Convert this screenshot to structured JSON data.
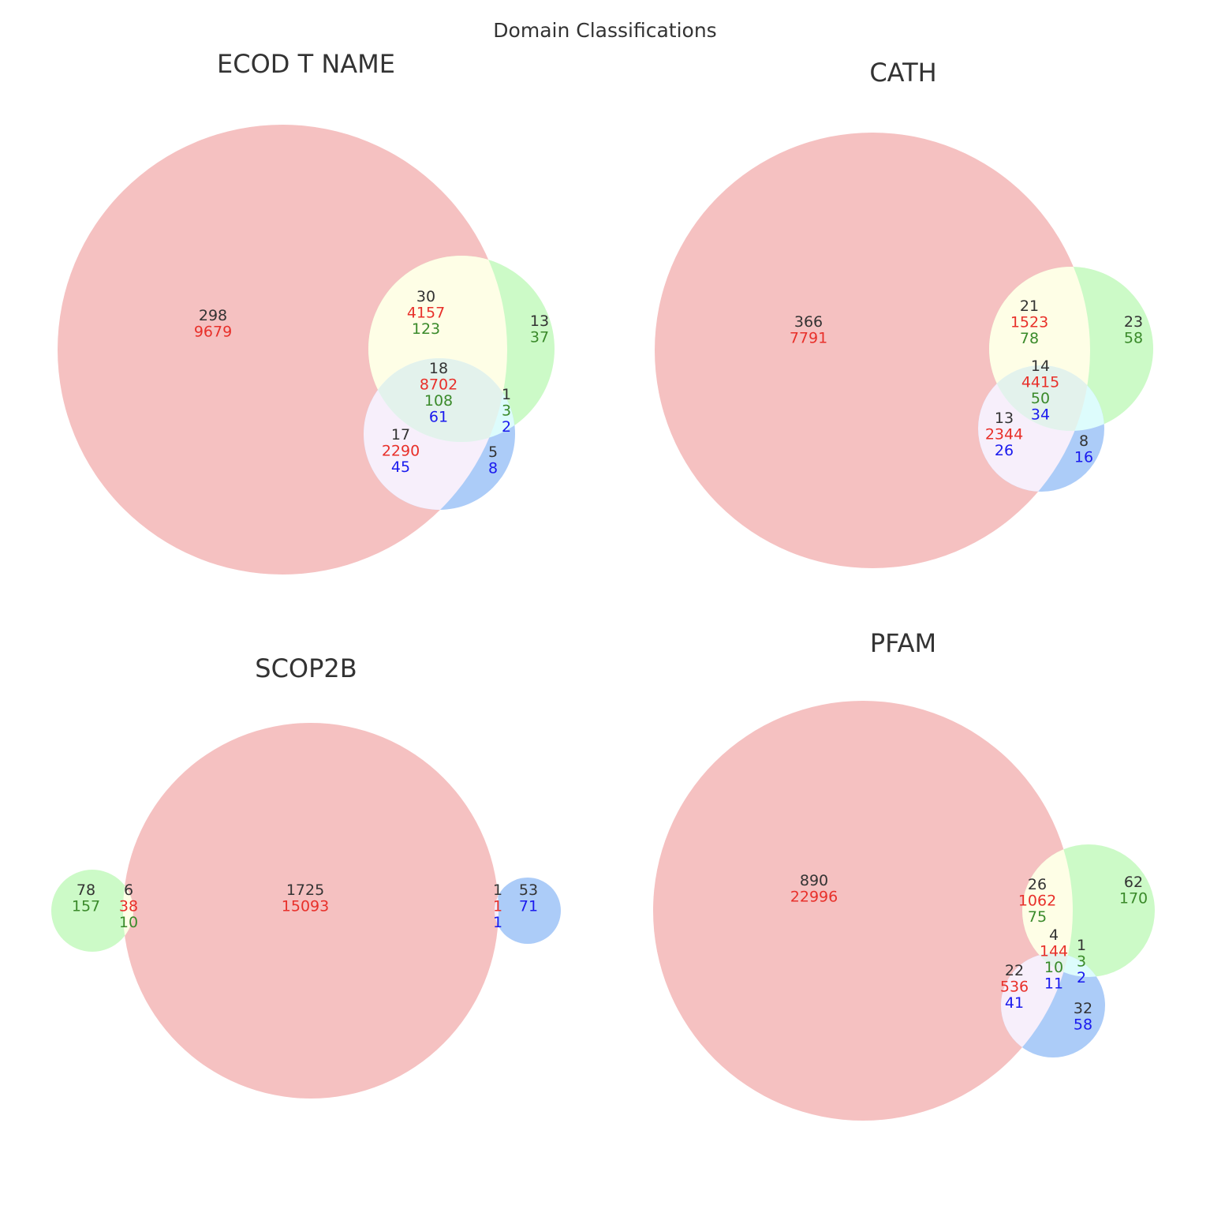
{
  "suptitle": "Domain Classifications",
  "colors": {
    "count": "#333333",
    "red": "#e8302a",
    "green": "#3a8a2a",
    "blue": "#1a1aee",
    "set_red": "#f5c1c1",
    "set_green": "#ccfac7",
    "set_blue": "#acccf8",
    "overlap_red_green": "#fefee6",
    "overlap_red_blue": "#f7effb",
    "overlap_all": "#e3f2ec",
    "overlap_green_blue": "#ddfcfc"
  },
  "chart_data": [
    {
      "type": "venn",
      "title": "ECOD T NAME",
      "regions": [
        {
          "id": "red_only",
          "values": [
            {
              "text": "298",
              "color": "count"
            },
            {
              "text": "9679",
              "color": "red"
            }
          ]
        },
        {
          "id": "red_green",
          "values": [
            {
              "text": "30",
              "color": "count"
            },
            {
              "text": "4157",
              "color": "red"
            },
            {
              "text": "123",
              "color": "green"
            }
          ]
        },
        {
          "id": "green_only",
          "values": [
            {
              "text": "13",
              "color": "count"
            },
            {
              "text": "37",
              "color": "green"
            }
          ]
        },
        {
          "id": "all",
          "values": [
            {
              "text": "18",
              "color": "count"
            },
            {
              "text": "8702",
              "color": "red"
            },
            {
              "text": "108",
              "color": "green"
            },
            {
              "text": "61",
              "color": "blue"
            }
          ]
        },
        {
          "id": "green_blue",
          "values": [
            {
              "text": "1",
              "color": "count"
            },
            {
              "text": "3",
              "color": "green"
            },
            {
              "text": "2",
              "color": "blue"
            }
          ]
        },
        {
          "id": "red_blue",
          "values": [
            {
              "text": "17",
              "color": "count"
            },
            {
              "text": "2290",
              "color": "red"
            },
            {
              "text": "45",
              "color": "blue"
            }
          ]
        },
        {
          "id": "blue_only",
          "values": [
            {
              "text": "5",
              "color": "count"
            },
            {
              "text": "8",
              "color": "blue"
            }
          ]
        }
      ]
    },
    {
      "type": "venn",
      "title": "CATH",
      "regions": [
        {
          "id": "red_only",
          "values": [
            {
              "text": "366",
              "color": "count"
            },
            {
              "text": "7791",
              "color": "red"
            }
          ]
        },
        {
          "id": "red_green",
          "values": [
            {
              "text": "21",
              "color": "count"
            },
            {
              "text": "1523",
              "color": "red"
            },
            {
              "text": "78",
              "color": "green"
            }
          ]
        },
        {
          "id": "green_only",
          "values": [
            {
              "text": "23",
              "color": "count"
            },
            {
              "text": "58",
              "color": "green"
            }
          ]
        },
        {
          "id": "all",
          "values": [
            {
              "text": "14",
              "color": "count"
            },
            {
              "text": "4415",
              "color": "red"
            },
            {
              "text": "50",
              "color": "green"
            },
            {
              "text": "34",
              "color": "blue"
            }
          ]
        },
        {
          "id": "red_blue",
          "values": [
            {
              "text": "13",
              "color": "count"
            },
            {
              "text": "2344",
              "color": "red"
            },
            {
              "text": "26",
              "color": "blue"
            }
          ]
        },
        {
          "id": "blue_only",
          "values": [
            {
              "text": "8",
              "color": "count"
            },
            {
              "text": "16",
              "color": "blue"
            }
          ]
        }
      ]
    },
    {
      "type": "venn",
      "title": "SCOP2B",
      "regions": [
        {
          "id": "green_only",
          "values": [
            {
              "text": "78",
              "color": "count"
            },
            {
              "text": "157",
              "color": "green"
            }
          ]
        },
        {
          "id": "red_green",
          "values": [
            {
              "text": "6",
              "color": "count"
            },
            {
              "text": "38",
              "color": "red"
            },
            {
              "text": "10",
              "color": "green"
            }
          ]
        },
        {
          "id": "red_only",
          "values": [
            {
              "text": "1725",
              "color": "count"
            },
            {
              "text": "15093",
              "color": "red"
            }
          ]
        },
        {
          "id": "red_blue",
          "values": [
            {
              "text": "1",
              "color": "count"
            },
            {
              "text": "1",
              "color": "red"
            },
            {
              "text": "1",
              "color": "blue"
            }
          ]
        },
        {
          "id": "blue_only",
          "values": [
            {
              "text": "53",
              "color": "count"
            },
            {
              "text": "71",
              "color": "blue"
            }
          ]
        }
      ]
    },
    {
      "type": "venn",
      "title": "PFAM",
      "regions": [
        {
          "id": "red_only",
          "values": [
            {
              "text": "890",
              "color": "count"
            },
            {
              "text": "22996",
              "color": "red"
            }
          ]
        },
        {
          "id": "red_green",
          "values": [
            {
              "text": "26",
              "color": "count"
            },
            {
              "text": "1062",
              "color": "red"
            },
            {
              "text": "75",
              "color": "green"
            }
          ]
        },
        {
          "id": "green_only",
          "values": [
            {
              "text": "62",
              "color": "count"
            },
            {
              "text": "170",
              "color": "green"
            }
          ]
        },
        {
          "id": "all",
          "values": [
            {
              "text": "4",
              "color": "count"
            },
            {
              "text": "144",
              "color": "red"
            },
            {
              "text": "10",
              "color": "green"
            },
            {
              "text": "11",
              "color": "blue"
            }
          ]
        },
        {
          "id": "green_blue",
          "values": [
            {
              "text": "1",
              "color": "count"
            },
            {
              "text": "3",
              "color": "green"
            },
            {
              "text": "2",
              "color": "blue"
            }
          ]
        },
        {
          "id": "red_blue",
          "values": [
            {
              "text": "22",
              "color": "count"
            },
            {
              "text": "536",
              "color": "red"
            },
            {
              "text": "41",
              "color": "blue"
            }
          ]
        },
        {
          "id": "blue_only",
          "values": [
            {
              "text": "32",
              "color": "count"
            },
            {
              "text": "58",
              "color": "blue"
            }
          ]
        }
      ]
    }
  ]
}
